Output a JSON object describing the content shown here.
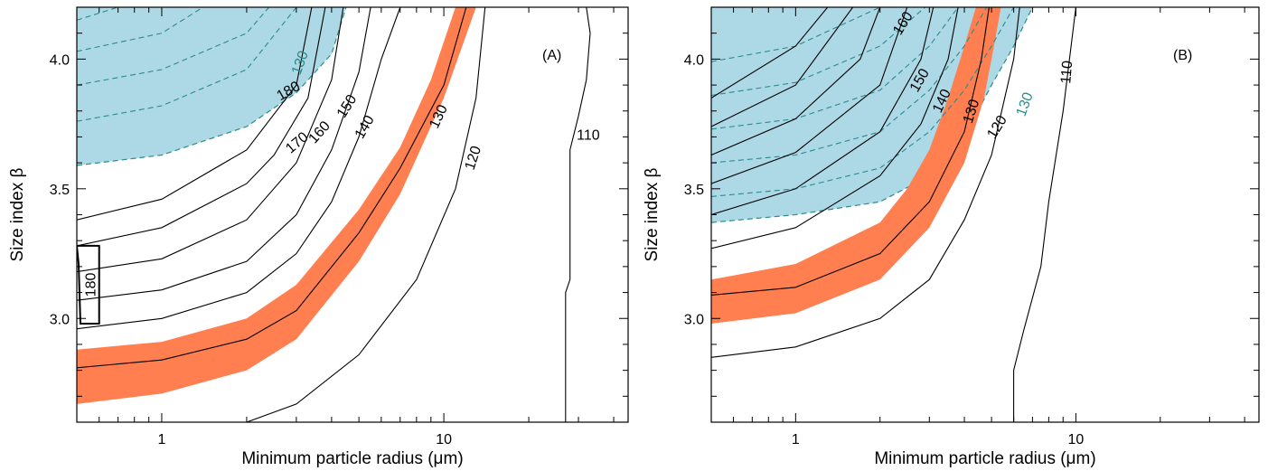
{
  "chart_data": [
    {
      "type": "contour",
      "panel_label": "(A)",
      "xlabel": "Minimum particle radius (μm)",
      "ylabel": "Size index β",
      "xscale": "log",
      "xlim": [
        0.5,
        45
      ],
      "ylim": [
        2.6,
        4.2
      ],
      "xticks_labeled": [
        1,
        10
      ],
      "yticks_labeled": [
        3.0,
        3.5,
        4.0
      ],
      "colors": {
        "blue_region": "#add8e6",
        "orange_band": "#ff7f50",
        "dashed": "#2a8c8c",
        "contour": "#000000"
      },
      "blue_region": {
        "dashed_level": "130",
        "boundary": [
          [
            0.5,
            3.59
          ],
          [
            1,
            3.63
          ],
          [
            2,
            3.74
          ],
          [
            3,
            3.87
          ],
          [
            4,
            4.02
          ],
          [
            4.5,
            4.2
          ]
        ]
      },
      "orange_band": {
        "upper": [
          [
            0.5,
            2.88
          ],
          [
            1,
            2.91
          ],
          [
            2,
            3.0
          ],
          [
            3,
            3.13
          ],
          [
            5,
            3.42
          ],
          [
            7,
            3.66
          ],
          [
            9,
            3.92
          ],
          [
            11,
            4.2
          ]
        ],
        "lower": [
          [
            0.5,
            2.67
          ],
          [
            1,
            2.71
          ],
          [
            2,
            2.8
          ],
          [
            3,
            2.92
          ],
          [
            5,
            3.22
          ],
          [
            7,
            3.48
          ],
          [
            10,
            3.85
          ],
          [
            13,
            4.2
          ]
        ]
      },
      "contours": [
        {
          "level": "130",
          "points": [
            [
              0.5,
              2.81
            ],
            [
              1,
              2.84
            ],
            [
              2,
              2.92
            ],
            [
              3,
              3.03
            ],
            [
              5,
              3.33
            ],
            [
              7,
              3.58
            ],
            [
              10,
              3.9
            ],
            [
              12,
              4.2
            ]
          ]
        },
        {
          "level": "120",
          "points": [
            [
              2,
              2.6
            ],
            [
              3,
              2.67
            ],
            [
              5,
              2.86
            ],
            [
              8,
              3.15
            ],
            [
              11,
              3.5
            ],
            [
              13,
              3.85
            ],
            [
              14,
              4.2
            ]
          ]
        },
        {
          "level": "140",
          "points": [
            [
              0.5,
              2.96
            ],
            [
              1,
              3.0
            ],
            [
              2,
              3.1
            ],
            [
              3,
              3.25
            ],
            [
              4,
              3.45
            ],
            [
              5,
              3.7
            ],
            [
              6,
              4.0
            ],
            [
              7,
              4.2
            ]
          ]
        },
        {
          "level": "150",
          "points": [
            [
              0.5,
              3.07
            ],
            [
              1,
              3.11
            ],
            [
              2,
              3.22
            ],
            [
              3,
              3.4
            ],
            [
              4,
              3.65
            ],
            [
              5,
              3.95
            ],
            [
              5.5,
              4.2
            ]
          ]
        },
        {
          "level": "160",
          "points": [
            [
              0.5,
              3.18
            ],
            [
              1,
              3.23
            ],
            [
              2,
              3.38
            ],
            [
              3,
              3.6
            ],
            [
              4,
              3.92
            ],
            [
              4.4,
              4.2
            ]
          ]
        },
        {
          "level": "170",
          "points": [
            [
              0.5,
              3.28
            ],
            [
              1,
              3.35
            ],
            [
              2,
              3.52
            ],
            [
              2.5,
              3.63
            ],
            [
              3.3,
              3.85
            ],
            [
              3.8,
              4.2
            ]
          ]
        },
        {
          "level": "180",
          "points": [
            [
              0.5,
              3.38
            ],
            [
              1,
              3.46
            ],
            [
              2,
              3.65
            ],
            [
              3,
              3.9
            ],
            [
              3.4,
              4.2
            ]
          ]
        },
        {
          "level": "110",
          "points": [
            [
              27,
              2.6
            ],
            [
              27,
              3.1
            ],
            [
              28,
              3.15
            ],
            [
              28,
              3.65
            ],
            [
              30,
              3.78
            ],
            [
              32,
              3.92
            ],
            [
              33,
              4.1
            ],
            [
              32,
              4.2
            ]
          ]
        }
      ],
      "dashed_contours": [
        [
          [
            0.5,
            3.76
          ],
          [
            1,
            3.82
          ],
          [
            2,
            3.96
          ],
          [
            3,
            4.2
          ]
        ],
        [
          [
            0.5,
            3.9
          ],
          [
            1,
            3.96
          ],
          [
            2,
            4.1
          ],
          [
            2.4,
            4.2
          ]
        ],
        [
          [
            0.5,
            4.03
          ],
          [
            1,
            4.1
          ],
          [
            1.4,
            4.2
          ]
        ],
        [
          [
            0.5,
            4.15
          ],
          [
            0.7,
            4.2
          ]
        ]
      ],
      "small_region_label": "180"
    },
    {
      "type": "contour",
      "panel_label": "(B)",
      "xlabel": "Minimum particle radius (μm)",
      "ylabel": "Size index β",
      "xscale": "log",
      "xlim": [
        0.5,
        45
      ],
      "ylim": [
        2.6,
        4.2
      ],
      "xticks_labeled": [
        1,
        10
      ],
      "yticks_labeled": [
        3.0,
        3.5,
        4.0
      ],
      "colors": {
        "blue_region": "#add8e6",
        "orange_band": "#ff7f50",
        "dashed": "#2a8c8c",
        "contour": "#000000"
      },
      "blue_region": {
        "dashed_level": "130",
        "boundary": [
          [
            0.5,
            3.37
          ],
          [
            1,
            3.4
          ],
          [
            2,
            3.45
          ],
          [
            3,
            3.55
          ],
          [
            4,
            3.7
          ],
          [
            5,
            3.9
          ],
          [
            6,
            4.05
          ],
          [
            7,
            4.2
          ]
        ]
      },
      "orange_band": {
        "upper": [
          [
            0.5,
            3.15
          ],
          [
            1,
            3.21
          ],
          [
            2,
            3.37
          ],
          [
            2.5,
            3.5
          ],
          [
            3,
            3.65
          ],
          [
            3.5,
            3.85
          ],
          [
            4,
            4.05
          ],
          [
            4.4,
            4.2
          ]
        ],
        "lower": [
          [
            0.5,
            2.98
          ],
          [
            1,
            3.02
          ],
          [
            2,
            3.15
          ],
          [
            3,
            3.35
          ],
          [
            4,
            3.6
          ],
          [
            4.7,
            3.85
          ],
          [
            5.1,
            4.05
          ],
          [
            5.4,
            4.2
          ]
        ]
      },
      "contours": [
        {
          "level": "130",
          "points": [
            [
              0.5,
              3.09
            ],
            [
              1,
              3.12
            ],
            [
              2,
              3.25
            ],
            [
              3,
              3.45
            ],
            [
              4,
              3.72
            ],
            [
              4.6,
              4.0
            ],
            [
              4.9,
              4.2
            ]
          ]
        },
        {
          "level": "120",
          "points": [
            [
              0.5,
              2.85
            ],
            [
              1,
              2.89
            ],
            [
              2,
              3.0
            ],
            [
              3,
              3.15
            ],
            [
              4,
              3.38
            ],
            [
              5,
              3.63
            ],
            [
              6,
              4.0
            ],
            [
              6.3,
              4.2
            ]
          ]
        },
        {
          "level": "140",
          "points": [
            [
              0.5,
              3.27
            ],
            [
              1,
              3.35
            ],
            [
              2,
              3.55
            ],
            [
              2.8,
              3.75
            ],
            [
              3.5,
              4.0
            ],
            [
              3.8,
              4.2
            ]
          ]
        },
        {
          "level": "150",
          "points": [
            [
              0.5,
              3.4
            ],
            [
              1,
              3.5
            ],
            [
              2,
              3.72
            ],
            [
              2.8,
              4.0
            ],
            [
              3.1,
              4.2
            ]
          ]
        },
        {
          "level": "160",
          "points": [
            [
              0.5,
              3.52
            ],
            [
              1,
              3.64
            ],
            [
              2,
              3.9
            ],
            [
              2.5,
              4.2
            ]
          ]
        },
        {
          "level": "",
          "points": [
            [
              0.5,
              3.63
            ],
            [
              1,
              3.77
            ],
            [
              1.7,
              4.0
            ],
            [
              2.0,
              4.2
            ]
          ]
        },
        {
          "level": "",
          "points": [
            [
              0.5,
              3.74
            ],
            [
              1,
              3.9
            ],
            [
              1.6,
              4.2
            ]
          ]
        },
        {
          "level": "",
          "points": [
            [
              0.5,
              3.85
            ],
            [
              1,
              4.05
            ],
            [
              1.3,
              4.2
            ]
          ]
        },
        {
          "level": "110",
          "points": [
            [
              6,
              2.6
            ],
            [
              6,
              2.8
            ],
            [
              6.5,
              2.95
            ],
            [
              7.5,
              3.2
            ],
            [
              8,
              3.45
            ],
            [
              9,
              3.8
            ],
            [
              10,
              4.2
            ]
          ]
        }
      ],
      "dashed_contours": [
        [
          [
            0.5,
            3.47
          ],
          [
            1,
            3.5
          ],
          [
            2,
            3.58
          ],
          [
            3,
            3.72
          ],
          [
            4,
            3.88
          ],
          [
            5,
            4.05
          ],
          [
            6,
            4.2
          ]
        ],
        [
          [
            0.5,
            3.6
          ],
          [
            1,
            3.63
          ],
          [
            2,
            3.72
          ],
          [
            3,
            3.88
          ],
          [
            4,
            4.05
          ],
          [
            4.8,
            4.2
          ]
        ],
        [
          [
            0.5,
            3.73
          ],
          [
            1,
            3.77
          ],
          [
            2,
            3.88
          ],
          [
            3,
            4.05
          ],
          [
            3.8,
            4.2
          ]
        ],
        [
          [
            0.5,
            3.86
          ],
          [
            1,
            3.91
          ],
          [
            2,
            4.05
          ],
          [
            2.9,
            4.2
          ]
        ],
        [
          [
            0.5,
            3.99
          ],
          [
            1,
            4.05
          ],
          [
            2,
            4.2
          ]
        ]
      ],
      "small_region_label": ""
    }
  ]
}
